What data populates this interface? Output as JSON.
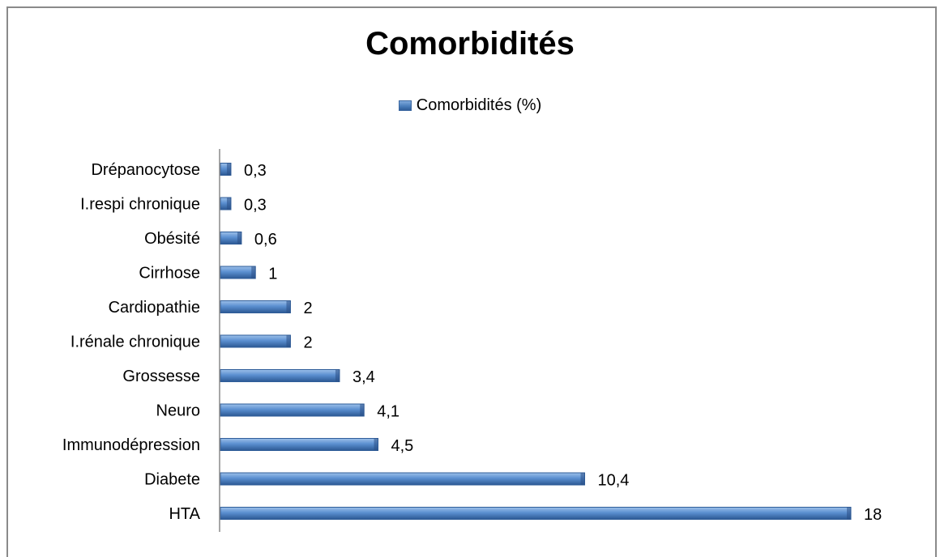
{
  "chart_data": {
    "type": "bar",
    "orientation": "horizontal",
    "title": "Comorbidités",
    "legend_position": "top",
    "categories": [
      "HTA",
      "Diabete",
      "Immunodépression",
      "Neuro",
      "Grossesse",
      "I.rénale chronique",
      "Cardiopathie",
      "Cirrhose",
      "Obésité",
      "I.respi chronique",
      "Drépanocytose"
    ],
    "series": [
      {
        "name": "Comorbidités (%)",
        "values": [
          18,
          10.4,
          4.5,
          4.1,
          3.4,
          2,
          2,
          1,
          0.6,
          0.3,
          0.3
        ]
      }
    ],
    "data_labels": [
      "18",
      "10,4",
      "4,5",
      "4,1",
      "3,4",
      "2",
      "2",
      "1",
      "0,6",
      "0,3",
      "0,3"
    ],
    "xlim": [
      0,
      18
    ],
    "grid": false,
    "bar_color": "#4a7ebb"
  }
}
